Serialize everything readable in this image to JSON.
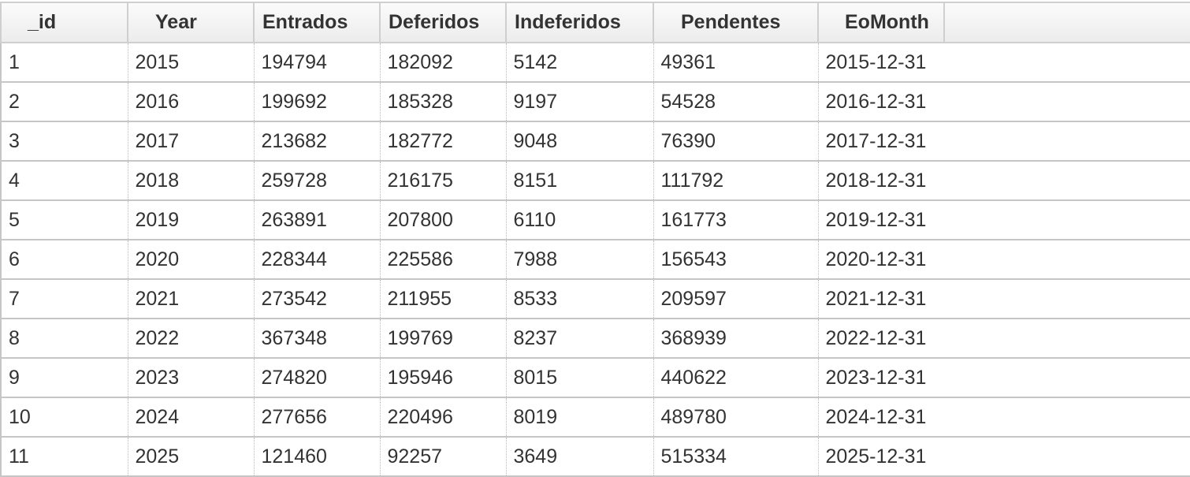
{
  "columns": [
    "_id",
    "Year",
    "Entrados",
    "Deferidos",
    "Indeferidos",
    "Pendentes",
    "EoMonth"
  ],
  "rows": [
    [
      "1",
      "2015",
      "194794",
      "182092",
      "5142",
      "49361",
      "2015-12-31"
    ],
    [
      "2",
      "2016",
      "199692",
      "185328",
      "9197",
      "54528",
      "2016-12-31"
    ],
    [
      "3",
      "2017",
      "213682",
      "182772",
      "9048",
      "76390",
      "2017-12-31"
    ],
    [
      "4",
      "2018",
      "259728",
      "216175",
      "8151",
      "111792",
      "2018-12-31"
    ],
    [
      "5",
      "2019",
      "263891",
      "207800",
      "6110",
      "161773",
      "2019-12-31"
    ],
    [
      "6",
      "2020",
      "228344",
      "225586",
      "7988",
      "156543",
      "2020-12-31"
    ],
    [
      "7",
      "2021",
      "273542",
      "211955",
      "8533",
      "209597",
      "2021-12-31"
    ],
    [
      "8",
      "2022",
      "367348",
      "199769",
      "8237",
      "368939",
      "2022-12-31"
    ],
    [
      "9",
      "2023",
      "274820",
      "195946",
      "8015",
      "440622",
      "2023-12-31"
    ],
    [
      "10",
      "2024",
      "277656",
      "220496",
      "8019",
      "489780",
      "2024-12-31"
    ],
    [
      "11",
      "2025",
      "121460",
      "92257",
      "3649",
      "515334",
      "2025-12-31"
    ]
  ]
}
